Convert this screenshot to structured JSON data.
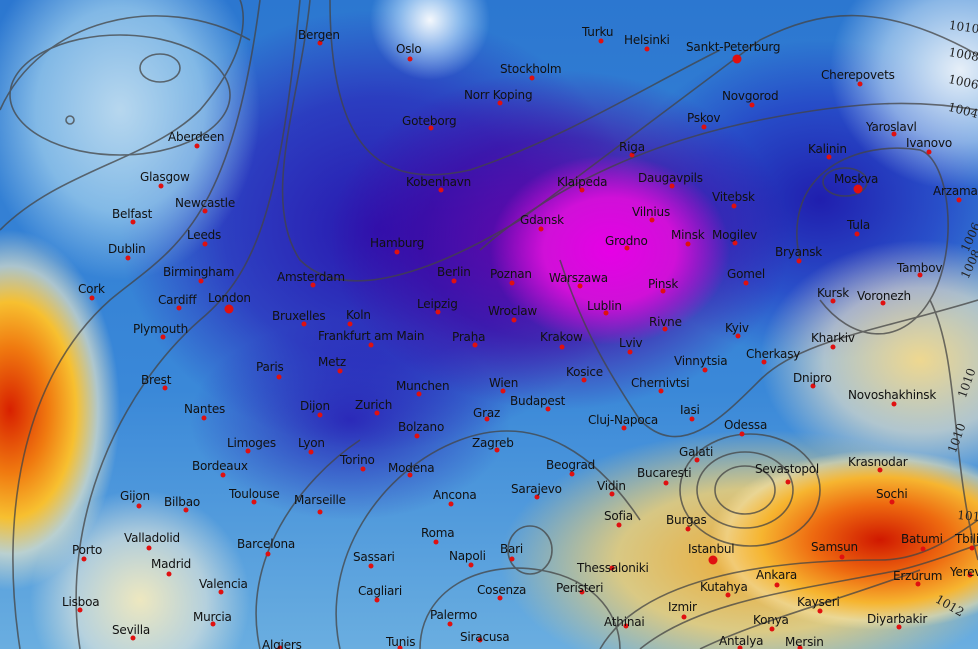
{
  "map": {
    "type": "weather-map",
    "field": "temperature anomaly with sea-level pressure isobars",
    "colors": {
      "cold_extreme": "#e600e6",
      "cold": "#2a1aa8",
      "cool": "#2c77d0",
      "neutral": "#f0f4f8",
      "warm": "#f6b530",
      "hot": "#d01800",
      "city_dot": "#e01010",
      "isobar": "#444444"
    },
    "cities": [
      "Bergen",
      "Oslo",
      "Stockholm",
      "Turku",
      "Helsinki",
      "Sankt-Peterburg",
      "Cherepovets",
      "Norr Koping",
      "Novgorod",
      "Goteborg",
      "Aberdeen",
      "Pskov",
      "Yaroslavl",
      "Ivanovo",
      "Kalinin",
      "Riga",
      "Moskva",
      "Glasgow",
      "Kobenhavn",
      "Klaipeda",
      "Daugavpils",
      "Arzamas",
      "Newcastle",
      "Vitebsk",
      "Belfast",
      "Vilnius",
      "Tula",
      "Gdansk",
      "Minsk",
      "Mogilev",
      "Grodno",
      "Leeds",
      "Hamburg",
      "Dublin",
      "Bryansk",
      "Birmingham",
      "Amsterdam",
      "Berlin",
      "Poznan",
      "Warszawa",
      "Gomel",
      "Pinsk",
      "Tambov",
      "Kursk",
      "Voronezh",
      "Cork",
      "Cardiff",
      "London",
      "Leipzig",
      "Wroclaw",
      "Lublin",
      "Rivne",
      "Kyiv",
      "Bruxelles",
      "Koln",
      "Plymouth",
      "Kharkiv",
      "Frankfurt am Main",
      "Praha",
      "Krakow",
      "Lviv",
      "Vinnytsia",
      "Cherkasy",
      "Paris",
      "Dnipro",
      "Brest",
      "Kosice",
      "Chernivtsi",
      "Wien",
      "Metz",
      "Munchen",
      "Budapest",
      "Novoshakhinsk",
      "Nantes",
      "Dijon",
      "Zurich",
      "Graz",
      "Iasi",
      "Cluj-Napoca",
      "Limoges",
      "Lyon",
      "Bolzano",
      "Zagreb",
      "Odessa",
      "Galati",
      "Bordeaux",
      "Torino",
      "Beograd",
      "Krasnodar",
      "Sevastopol",
      "Modena",
      "Bucaresti",
      "Vidin",
      "Sarajevo",
      "Toulouse",
      "Gijon",
      "Bilbao",
      "Marseille",
      "Ancona",
      "Sochi",
      "Sofia",
      "Burgas",
      "Valladolid",
      "Barcelona",
      "Istanbul",
      "Batumi",
      "Samsun",
      "Roma",
      "Porto",
      "Madrid",
      "Napoli",
      "Bari",
      "Sassari",
      "Thessaloniki",
      "Ankara",
      "Erzurum",
      "Valencia",
      "Kutahya",
      "Peristeri",
      "Cagliari",
      "Cosenza",
      "Lisboa",
      "Kayseri",
      "Murcia",
      "Izmir",
      "Athinai",
      "Diyarbakir",
      "Konya",
      "Sevilla",
      "Palermo",
      "Siracusa",
      "Algiers",
      "Tunis",
      "Antalya",
      "Mersin",
      "Yerevan",
      "Tbilisi"
    ],
    "isobar_labels": [
      "1010",
      "1008",
      "1006",
      "1004",
      "1006",
      "1008",
      "1010",
      "1010",
      "1010",
      "1012"
    ]
  }
}
